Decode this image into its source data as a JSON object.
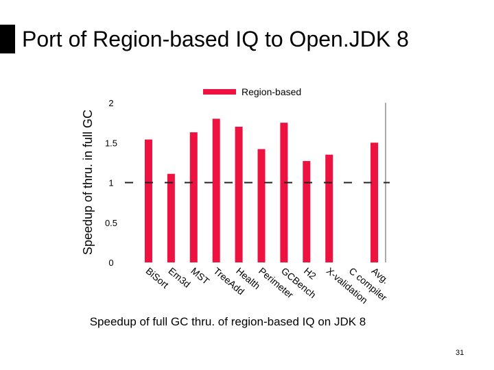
{
  "slide": {
    "title": "Port of Region-based IQ to Open.JDK 8",
    "caption": "Speedup of full GC thru. of region-based IQ on JDK 8",
    "page_number": "31"
  },
  "colors": {
    "bar": "#ee1240",
    "axis": "#555555",
    "baseline": "#222222"
  },
  "chart_data": {
    "type": "bar",
    "categories": [
      "BiSort",
      "Em3d",
      "MST",
      "TreeAdd",
      "Health",
      "Perimeter",
      "GCBench",
      "H2",
      "X-validation",
      "C compiler",
      "Avg."
    ],
    "series": [
      {
        "name": "Region-based",
        "values": [
          1.54,
          1.11,
          1.63,
          1.8,
          1.7,
          1.42,
          1.75,
          1.27,
          1.35,
          null,
          1.5
        ]
      }
    ],
    "title": "",
    "xlabel": "",
    "ylabel": "Speedup of thru. in full GC",
    "ylim": [
      0,
      2
    ],
    "yticks": [
      "0",
      "0.5",
      "1",
      "1.5",
      "2"
    ],
    "reference_line": 1,
    "legend": "top"
  }
}
